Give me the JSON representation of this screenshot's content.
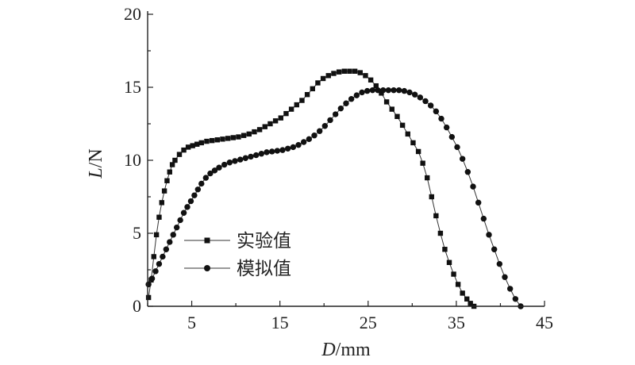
{
  "chart_data": {
    "type": "line",
    "xlabel_var": "D",
    "xlabel_unit": "/mm",
    "ylabel_var": "L",
    "ylabel_unit": "/N",
    "xlim": [
      0,
      45
    ],
    "ylim": [
      0,
      20
    ],
    "x_ticks": [
      5,
      15,
      25,
      35,
      45
    ],
    "y_ticks": [
      0,
      5,
      10,
      15,
      20
    ],
    "grid": false,
    "legend_position": "center-left",
    "series": [
      {
        "name": "实验值",
        "marker": "square",
        "x": [
          0.1,
          0.4,
          0.7,
          1.0,
          1.3,
          1.6,
          1.9,
          2.2,
          2.5,
          2.8,
          3.1,
          3.6,
          4.1,
          4.6,
          5.1,
          5.6,
          6.1,
          6.7,
          7.3,
          7.9,
          8.5,
          9.1,
          9.7,
          10.3,
          10.9,
          11.5,
          12.1,
          12.7,
          13.3,
          13.9,
          14.5,
          15.1,
          15.7,
          16.3,
          16.9,
          17.5,
          18.1,
          18.7,
          19.3,
          19.9,
          20.5,
          21.1,
          21.7,
          22.3,
          22.9,
          23.5,
          24.1,
          24.7,
          25.3,
          25.9,
          26.5,
          27.1,
          27.7,
          28.3,
          28.9,
          29.5,
          30.1,
          30.7,
          31.2,
          31.7,
          32.2,
          32.7,
          33.2,
          33.7,
          34.2,
          34.7,
          35.2,
          35.7,
          36.2,
          36.6,
          37.0
        ],
        "y": [
          0.6,
          1.8,
          3.4,
          4.9,
          6.1,
          7.1,
          7.9,
          8.6,
          9.2,
          9.7,
          10.0,
          10.4,
          10.7,
          10.9,
          11.0,
          11.1,
          11.2,
          11.3,
          11.35,
          11.4,
          11.45,
          11.5,
          11.55,
          11.6,
          11.7,
          11.8,
          11.95,
          12.1,
          12.3,
          12.5,
          12.7,
          12.9,
          13.2,
          13.5,
          13.8,
          14.1,
          14.5,
          14.9,
          15.3,
          15.6,
          15.8,
          15.95,
          16.05,
          16.1,
          16.1,
          16.1,
          16.0,
          15.8,
          15.5,
          15.1,
          14.6,
          14.0,
          13.5,
          13.0,
          12.4,
          11.8,
          11.2,
          10.6,
          9.8,
          8.8,
          7.5,
          6.2,
          5.0,
          3.9,
          3.0,
          2.2,
          1.5,
          0.9,
          0.5,
          0.2,
          0.0
        ]
      },
      {
        "name": "模拟值",
        "marker": "circle",
        "x": [
          0.1,
          0.5,
          0.9,
          1.3,
          1.7,
          2.1,
          2.5,
          2.9,
          3.3,
          3.7,
          4.1,
          4.5,
          4.9,
          5.3,
          5.7,
          6.1,
          6.6,
          7.1,
          7.6,
          8.1,
          8.7,
          9.3,
          9.9,
          10.5,
          11.1,
          11.7,
          12.3,
          12.9,
          13.5,
          14.1,
          14.7,
          15.3,
          15.9,
          16.5,
          17.1,
          17.7,
          18.3,
          18.9,
          19.5,
          20.1,
          20.7,
          21.3,
          21.9,
          22.5,
          23.1,
          23.7,
          24.3,
          24.9,
          25.5,
          26.1,
          26.7,
          27.3,
          27.9,
          28.5,
          29.1,
          29.7,
          30.3,
          30.9,
          31.5,
          32.1,
          32.7,
          33.3,
          33.9,
          34.5,
          35.1,
          35.7,
          36.3,
          36.9,
          37.5,
          38.1,
          38.7,
          39.3,
          39.9,
          40.5,
          41.1,
          41.7,
          42.3
        ],
        "y": [
          1.5,
          1.9,
          2.4,
          2.9,
          3.4,
          3.9,
          4.4,
          4.9,
          5.4,
          5.9,
          6.4,
          6.8,
          7.2,
          7.6,
          8.0,
          8.4,
          8.8,
          9.1,
          9.3,
          9.5,
          9.7,
          9.85,
          9.95,
          10.05,
          10.15,
          10.25,
          10.35,
          10.45,
          10.55,
          10.6,
          10.65,
          10.7,
          10.8,
          10.9,
          11.05,
          11.25,
          11.45,
          11.7,
          12.0,
          12.35,
          12.75,
          13.15,
          13.55,
          13.9,
          14.2,
          14.45,
          14.65,
          14.75,
          14.8,
          14.8,
          14.8,
          14.8,
          14.8,
          14.8,
          14.75,
          14.65,
          14.5,
          14.3,
          14.05,
          13.75,
          13.35,
          12.85,
          12.25,
          11.6,
          10.9,
          10.1,
          9.2,
          8.2,
          7.1,
          6.0,
          4.9,
          3.9,
          2.9,
          2.0,
          1.2,
          0.5,
          0.0
        ]
      }
    ]
  }
}
